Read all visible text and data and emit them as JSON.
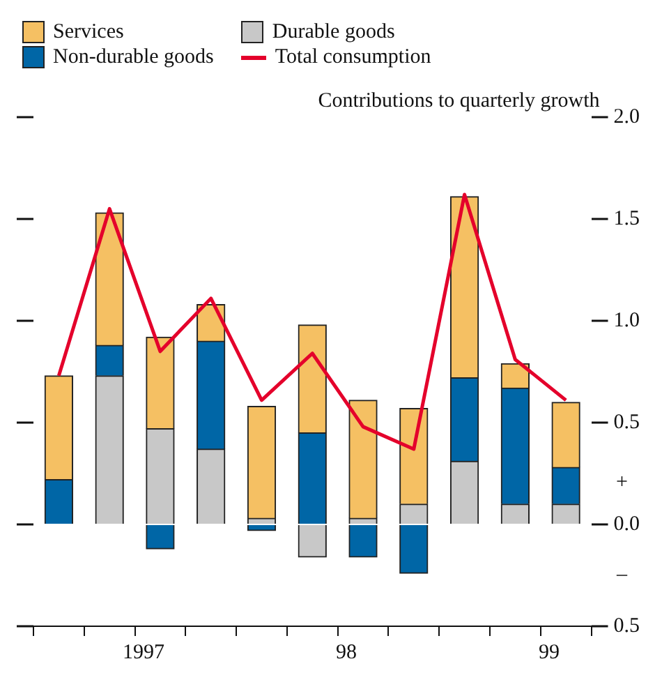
{
  "chart_data": {
    "type": "bar",
    "stacked": true,
    "ylabel": "Contributions to quarterly growth",
    "categories": [
      null,
      null,
      "1997",
      null,
      null,
      null,
      "98",
      null,
      null,
      null,
      "99"
    ],
    "series": [
      {
        "name": "Durable goods",
        "color": "#c8c8c8",
        "values": [
          0,
          0.73,
          0.47,
          0.37,
          0.03,
          -0.16,
          0.03,
          0.1,
          0.31,
          0.1,
          0.1
        ]
      },
      {
        "name": "Non-durable goods",
        "color": "#0066a6",
        "values": [
          0.22,
          0.15,
          -0.12,
          0.53,
          -0.03,
          0.45,
          -0.16,
          -0.24,
          0.41,
          0.57,
          0.18
        ]
      },
      {
        "name": "Services",
        "color": "#f5c063",
        "values": [
          0.51,
          0.65,
          0.45,
          0.18,
          0.55,
          0.53,
          0.58,
          0.47,
          0.89,
          0.12,
          0.32
        ]
      },
      {
        "name": "Total consumption",
        "type": "line",
        "color": "#e4002b",
        "values": [
          0.73,
          1.55,
          0.85,
          1.11,
          0.61,
          0.84,
          0.48,
          0.37,
          1.62,
          0.81,
          0.61
        ]
      }
    ],
    "ylim": [
      -0.5,
      2.0
    ],
    "yticks": [
      {
        "value": -0.5,
        "label": "0.5"
      },
      {
        "value": 0,
        "label": "0.0"
      },
      {
        "value": 0.5,
        "label": "0.5"
      },
      {
        "value": 1,
        "label": "1.0"
      },
      {
        "value": 1.5,
        "label": "1.5"
      },
      {
        "value": 2,
        "label": "2.0"
      }
    ],
    "annotations": [
      "+",
      "–"
    ],
    "grid": false,
    "legend": "top left"
  }
}
